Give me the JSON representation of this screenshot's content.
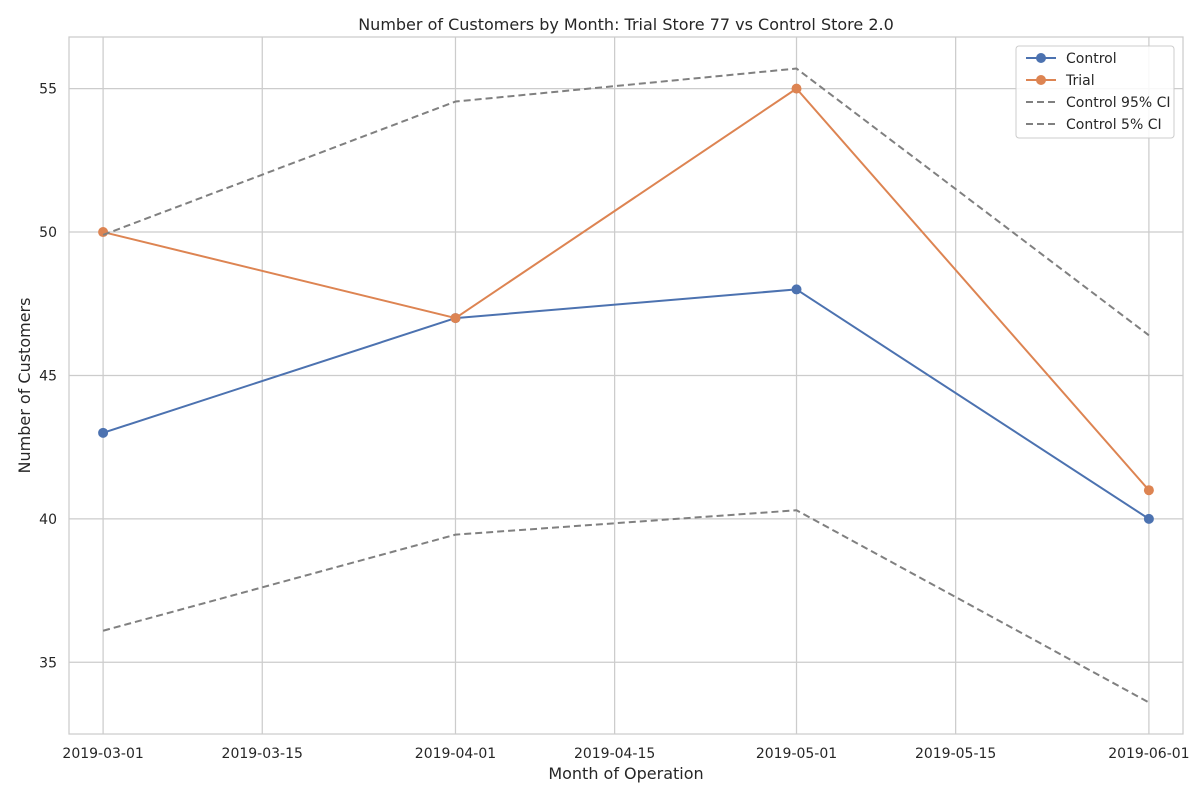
{
  "chart_data": {
    "type": "line",
    "title": "Number of Customers by Month: Trial Store 77 vs Control Store 2.0",
    "xlabel": "Month of Operation",
    "ylabel": "Number of Customers",
    "x_type": "date",
    "xlim": [
      "2019-02-26",
      "2019-06-04"
    ],
    "ylim": [
      32.5,
      56.8
    ],
    "x_ticks": [
      "2019-03-01",
      "2019-03-15",
      "2019-04-01",
      "2019-04-15",
      "2019-05-01",
      "2019-05-15",
      "2019-06-01"
    ],
    "y_ticks": [
      35,
      40,
      45,
      50,
      55
    ],
    "grid": true,
    "legend_position": "top-right",
    "x": [
      "2019-03-01",
      "2019-04-01",
      "2019-05-01",
      "2019-06-01"
    ],
    "series": [
      {
        "name": "Control",
        "values": [
          43,
          47,
          48,
          40
        ],
        "color": "#4c72b0",
        "style": "solid",
        "marker": true
      },
      {
        "name": "Trial",
        "values": [
          50,
          47,
          55,
          41
        ],
        "color": "#dd8452",
        "style": "solid",
        "marker": true
      },
      {
        "name": "Control 95% CI",
        "values": [
          49.9,
          54.55,
          55.7,
          46.4
        ],
        "color": "#808080",
        "style": "dashed",
        "marker": false
      },
      {
        "name": "Control 5% CI",
        "values": [
          36.1,
          39.45,
          40.3,
          33.6
        ],
        "color": "#808080",
        "style": "dashed",
        "marker": false
      }
    ]
  }
}
